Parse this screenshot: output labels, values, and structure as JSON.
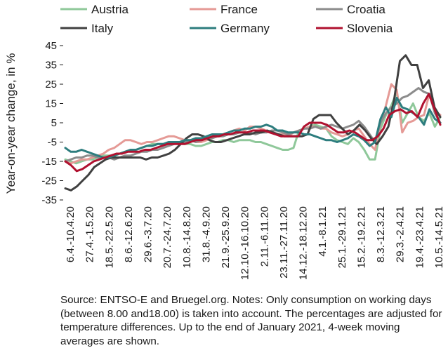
{
  "chart_data": {
    "type": "line",
    "title": "",
    "xlabel": "",
    "ylabel": "Year-on-year change, in %",
    "ylim": [
      -35,
      45
    ],
    "yticks": [
      45,
      35,
      25,
      15,
      5,
      -5,
      -15,
      -25,
      -35
    ],
    "grid": false,
    "legend_position": "top",
    "x_tick_labels": [
      "6.4.-10.4.20",
      "27.4.-1.5.20",
      "18.5.-22.5.20",
      "8.6.-12.6.20",
      "29.6.-3.7.20",
      "20.7.-24.7.20",
      "10.8.-14.8.20",
      "31.8.-4.9.20",
      "21.9.-25.9.20",
      "12.10.-16.10.20",
      "2.11.-6.11.20",
      "23.11.-27.11.20",
      "14.12.-18.12.20",
      "4.1.-8.1.21",
      "25.1.-29.1.21",
      "15.2.-19.2.21",
      "8.3.-12.3.21",
      "29.3.-2.4.21",
      "19.4.-23.4.21",
      "10.5.-14.5.21"
    ],
    "series": [
      {
        "name": "Austria",
        "color": "#8fc89a",
        "values": [
          -14,
          -15,
          -16,
          -15,
          -14,
          -14,
          -13,
          -12,
          -12,
          -12,
          -11,
          -10,
          -9,
          -9,
          -8,
          -7,
          -6,
          -6,
          -6,
          -6,
          -5,
          -5,
          -6,
          -6,
          -7,
          -7,
          -6,
          -5,
          -5,
          -4,
          -4,
          -5,
          -4,
          -4,
          -4,
          -5,
          -5,
          -6,
          -7,
          -8,
          -9,
          -9,
          -8,
          1,
          2,
          3,
          4,
          3,
          2,
          -2,
          -4,
          -5,
          -6,
          -3,
          -5,
          -9,
          -14,
          -14,
          2,
          9,
          14,
          21,
          5,
          10,
          15,
          8,
          6,
          10,
          3,
          8
        ]
      },
      {
        "name": "France",
        "color": "#e59a96",
        "values": [
          -15,
          -16,
          -15,
          -14,
          -14,
          -13,
          -12,
          -11,
          -9,
          -8,
          -6,
          -4,
          -4,
          -5,
          -6,
          -5,
          -5,
          -4,
          -3,
          -2,
          -2,
          -3,
          -4,
          -4,
          -5,
          -5,
          -4,
          -3,
          -2,
          -1,
          0,
          1,
          2,
          1,
          3,
          3,
          2,
          1,
          0,
          -1,
          -1,
          -2,
          0,
          1,
          2,
          3,
          3,
          2,
          2,
          0,
          -1,
          -2,
          -1,
          1,
          2,
          -2,
          -6,
          -9,
          5,
          14,
          25,
          22,
          0,
          5,
          6,
          8,
          9,
          20,
          11,
          9
        ]
      },
      {
        "name": "Croatia",
        "color": "#8c8c8c",
        "values": [
          -15,
          -14,
          -13,
          -13,
          -12,
          -12,
          -13,
          -13,
          -13,
          -14,
          -13,
          -12,
          -12,
          -11,
          -10,
          -10,
          -9,
          -9,
          -8,
          -7,
          -6,
          -5,
          -5,
          -4,
          -5,
          -4,
          -3,
          -3,
          -2,
          -2,
          -1,
          -1,
          0,
          0,
          0,
          -1,
          0,
          0,
          1,
          1,
          0,
          -1,
          0,
          1,
          2,
          2,
          3,
          2,
          3,
          4,
          3,
          2,
          3,
          4,
          6,
          3,
          -1,
          -5,
          5,
          10,
          13,
          15,
          18,
          19,
          21,
          23,
          21,
          20,
          10,
          5
        ]
      },
      {
        "name": "Italy",
        "color": "#404040",
        "values": [
          -29,
          -30,
          -28,
          -25,
          -22,
          -18,
          -16,
          -14,
          -13,
          -13,
          -13,
          -13,
          -13,
          -13,
          -14,
          -13,
          -13,
          -12,
          -11,
          -9,
          -6,
          -3,
          -1,
          -1,
          -2,
          -4,
          -5,
          -5,
          -4,
          -3,
          -2,
          -1,
          -1,
          0,
          0,
          1,
          0,
          -1,
          -2,
          -2,
          -2,
          -2,
          -1,
          7,
          9,
          9,
          9,
          5,
          2,
          -1,
          1,
          4,
          1,
          -3,
          -6,
          -2,
          3,
          17,
          37,
          40,
          35,
          35,
          23,
          27,
          13,
          8
        ]
      },
      {
        "name": "Germany",
        "color": "#2d7d7e",
        "values": [
          -8,
          -10,
          -10,
          -9,
          -10,
          -11,
          -12,
          -13,
          -13,
          -12,
          -11,
          -10,
          -9,
          -9,
          -8,
          -7,
          -7,
          -6,
          -6,
          -5,
          -5,
          -5,
          -4,
          -4,
          -3,
          -3,
          -2,
          -1,
          -1,
          -1,
          0,
          1,
          1,
          2,
          2,
          3,
          3,
          4,
          3,
          1,
          1,
          0,
          0,
          0,
          -1,
          -1,
          -2,
          -3,
          -4,
          -4,
          -5,
          -4,
          -3,
          -1,
          -2,
          -4,
          -7,
          -5,
          7,
          13,
          8,
          18,
          13,
          12,
          10,
          8,
          4,
          12,
          7,
          5
        ]
      },
      {
        "name": "Slovenia",
        "color": "#b0112f",
        "values": [
          -15,
          -17,
          -20,
          -19,
          -17,
          -15,
          -14,
          -13,
          -12,
          -11,
          -11,
          -10,
          -10,
          -10,
          -9,
          -9,
          -8,
          -7,
          -6,
          -6,
          -6,
          -6,
          -5,
          -4,
          -4,
          -3,
          -2,
          -2,
          -1,
          -1,
          0,
          0,
          0,
          1,
          1,
          1,
          0,
          -1,
          -2,
          -2,
          -2,
          -2,
          3,
          5,
          5,
          5,
          4,
          2,
          0,
          0,
          1,
          0,
          -2,
          -4,
          -4,
          -2,
          2,
          9,
          11,
          12,
          10,
          11,
          8,
          15,
          20,
          12,
          4
        ]
      }
    ]
  },
  "footnote": "Source: ENTSO-E and Bruegel.org. Notes: Only consumption on working days (between 8.00 and18.00) is taken into account. The percentages are adjusted for temperature differences. Up to the end of January 2021, 4-week moving averages are shown."
}
